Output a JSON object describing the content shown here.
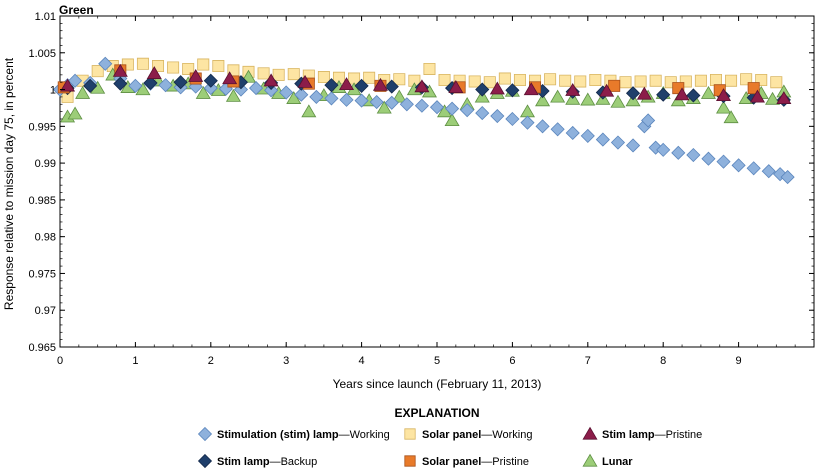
{
  "chart_data": {
    "type": "scatter",
    "title": "Green",
    "xlabel": "Years since launch (February 11, 2013)",
    "ylabel": "Response relative to mission day 75, in percent",
    "xlim": [
      0,
      10
    ],
    "ylim": [
      0.965,
      1.01
    ],
    "xticks": [
      0,
      1,
      2,
      3,
      4,
      5,
      6,
      7,
      8,
      9
    ],
    "yticks": [
      0.965,
      0.97,
      0.975,
      0.98,
      0.985,
      0.99,
      0.995,
      1,
      1.005,
      1.01
    ],
    "ytick_labels": [
      "0.965",
      "0.97",
      "0.975",
      "0.98",
      "0.985",
      "0.99",
      "0.995",
      "1",
      "1.005",
      "1.01"
    ],
    "grid": false,
    "series": [
      {
        "name": "Stimulation (stim) lamp—Working",
        "legend_bold": "Stimulation (stim) lamp",
        "legend_rest": "—Working",
        "marker": "diamond",
        "color": "#8eb1dc",
        "edge": "#5b86bd",
        "points": [
          [
            0.0,
            1.0
          ],
          [
            0.1,
            1.0006
          ],
          [
            0.2,
            1.0012
          ],
          [
            0.4,
            1.0009
          ],
          [
            0.6,
            1.0035
          ],
          [
            0.8,
            1.0015
          ],
          [
            1.0,
            1.0005
          ],
          [
            1.2,
            1.0008
          ],
          [
            1.4,
            1.0006
          ],
          [
            1.6,
            1.0003
          ],
          [
            1.8,
            1.0004
          ],
          [
            2.0,
            1.0002
          ],
          [
            2.2,
            1.0001
          ],
          [
            2.4,
            1.0
          ],
          [
            2.6,
            1.0002
          ],
          [
            2.8,
            0.9999
          ],
          [
            3.0,
            0.9996
          ],
          [
            3.2,
            0.9993
          ],
          [
            3.4,
            0.999
          ],
          [
            3.6,
            0.9988
          ],
          [
            3.8,
            0.9986
          ],
          [
            4.0,
            0.9985
          ],
          [
            4.2,
            0.9983
          ],
          [
            4.4,
            0.9982
          ],
          [
            4.6,
            0.998
          ],
          [
            4.8,
            0.9978
          ],
          [
            5.0,
            0.9976
          ],
          [
            5.2,
            0.9974
          ],
          [
            5.4,
            0.9972
          ],
          [
            5.6,
            0.9968
          ],
          [
            5.8,
            0.9964
          ],
          [
            6.0,
            0.996
          ],
          [
            6.2,
            0.9955
          ],
          [
            6.4,
            0.995
          ],
          [
            6.6,
            0.9946
          ],
          [
            6.8,
            0.9941
          ],
          [
            7.0,
            0.9937
          ],
          [
            7.2,
            0.9932
          ],
          [
            7.4,
            0.9928
          ],
          [
            7.6,
            0.9924
          ],
          [
            7.75,
            0.995
          ],
          [
            7.8,
            0.9958
          ],
          [
            7.9,
            0.9921
          ],
          [
            8.0,
            0.9918
          ],
          [
            8.2,
            0.9914
          ],
          [
            8.4,
            0.9911
          ],
          [
            8.6,
            0.9906
          ],
          [
            8.8,
            0.9902
          ],
          [
            9.0,
            0.9897
          ],
          [
            9.2,
            0.9893
          ],
          [
            9.4,
            0.9889
          ],
          [
            9.55,
            0.9885
          ],
          [
            9.65,
            0.9881
          ]
        ]
      },
      {
        "name": "Stim lamp—Backup",
        "legend_bold": "Stim lamp",
        "legend_rest": "—Backup",
        "marker": "diamond",
        "color": "#1f3f6b",
        "edge": "#14294a",
        "points": [
          [
            0.1,
            1.0002
          ],
          [
            0.4,
            1.0005
          ],
          [
            0.8,
            1.0008
          ],
          [
            1.2,
            1.0009
          ],
          [
            1.6,
            1.001
          ],
          [
            2.0,
            1.0012
          ],
          [
            2.4,
            1.001
          ],
          [
            2.8,
            1.0009
          ],
          [
            3.2,
            1.0008
          ],
          [
            3.6,
            1.0006
          ],
          [
            4.0,
            1.0005
          ],
          [
            4.4,
            1.0004
          ],
          [
            4.8,
            1.0003
          ],
          [
            5.2,
            1.0002
          ],
          [
            5.6,
            1.0
          ],
          [
            6.0,
            0.9999
          ],
          [
            6.4,
            0.9998
          ],
          [
            6.8,
            0.9997
          ],
          [
            7.2,
            0.9996
          ],
          [
            7.6,
            0.9995
          ],
          [
            8.0,
            0.9993
          ],
          [
            8.4,
            0.9992
          ],
          [
            8.8,
            0.9991
          ],
          [
            9.2,
            0.9989
          ],
          [
            9.6,
            0.9986
          ]
        ]
      },
      {
        "name": "Solar panel—Working",
        "legend_bold": "Solar panel",
        "legend_rest": "—Working",
        "marker": "square",
        "color": "#fde5a3",
        "edge": "#d8b562",
        "points": [
          [
            0.1,
            0.999
          ],
          [
            0.3,
            1.0012
          ],
          [
            0.5,
            1.0025
          ],
          [
            0.7,
            1.0032
          ],
          [
            0.9,
            1.0034
          ],
          [
            1.1,
            1.0035
          ],
          [
            1.3,
            1.0032
          ],
          [
            1.5,
            1.003
          ],
          [
            1.7,
            1.0028
          ],
          [
            1.9,
            1.0034
          ],
          [
            2.1,
            1.0032
          ],
          [
            2.3,
            1.0026
          ],
          [
            2.5,
            1.0024
          ],
          [
            2.7,
            1.0022
          ],
          [
            2.9,
            1.002
          ],
          [
            3.1,
            1.0021
          ],
          [
            3.3,
            1.0019
          ],
          [
            3.5,
            1.0017
          ],
          [
            3.7,
            1.0016
          ],
          [
            3.9,
            1.0015
          ],
          [
            4.1,
            1.0016
          ],
          [
            4.3,
            1.0013
          ],
          [
            4.5,
            1.0014
          ],
          [
            4.7,
            1.0012
          ],
          [
            4.9,
            1.0028
          ],
          [
            5.1,
            1.0013
          ],
          [
            5.3,
            1.0012
          ],
          [
            5.5,
            1.0011
          ],
          [
            5.7,
            1.001
          ],
          [
            5.9,
            1.0015
          ],
          [
            6.1,
            1.0013
          ],
          [
            6.3,
            1.0012
          ],
          [
            6.5,
            1.0014
          ],
          [
            6.7,
            1.0012
          ],
          [
            6.9,
            1.0011
          ],
          [
            7.1,
            1.0013
          ],
          [
            7.3,
            1.0012
          ],
          [
            7.5,
            1.001
          ],
          [
            7.7,
            1.0011
          ],
          [
            7.9,
            1.0012
          ],
          [
            8.1,
            1.001
          ],
          [
            8.3,
            1.0011
          ],
          [
            8.5,
            1.0012
          ],
          [
            8.7,
            1.0013
          ],
          [
            8.9,
            1.0012
          ],
          [
            9.1,
            1.0014
          ],
          [
            9.3,
            1.0013
          ],
          [
            9.5,
            1.001
          ]
        ]
      },
      {
        "name": "Solar panel—Pristine",
        "legend_bold": "Solar panel",
        "legend_rest": "—Pristine",
        "marker": "square",
        "color": "#e87a2a",
        "edge": "#a8501a",
        "points": [
          [
            0.05,
            1.0003
          ],
          [
            0.8,
            1.0026
          ],
          [
            1.8,
            1.0015
          ],
          [
            2.3,
            1.0011
          ],
          [
            3.3,
            1.0008
          ],
          [
            4.25,
            1.0005
          ],
          [
            5.3,
            1.0003
          ],
          [
            6.3,
            1.0003
          ],
          [
            7.35,
            1.0005
          ],
          [
            8.2,
            1.0002
          ],
          [
            8.75,
            0.9999
          ],
          [
            9.2,
            1.0002
          ]
        ]
      },
      {
        "name": "Stim lamp—Pristine",
        "legend_bold": "Stim lamp",
        "legend_rest": "—Pristine",
        "marker": "triangle",
        "color": "#8c1d4a",
        "edge": "#5a1030",
        "points": [
          [
            0.1,
            1.0005
          ],
          [
            0.8,
            1.0025
          ],
          [
            1.25,
            1.0022
          ],
          [
            1.8,
            1.0018
          ],
          [
            2.25,
            1.0015
          ],
          [
            2.8,
            1.0012
          ],
          [
            3.25,
            1.001
          ],
          [
            3.8,
            1.0007
          ],
          [
            4.25,
            1.0006
          ],
          [
            4.8,
            1.0004
          ],
          [
            5.25,
            1.0003
          ],
          [
            5.8,
            1.0001
          ],
          [
            6.25,
            1.0
          ],
          [
            6.8,
            0.9999
          ],
          [
            7.25,
            0.9998
          ],
          [
            7.75,
            0.9994
          ],
          [
            8.25,
            0.9993
          ],
          [
            8.8,
            0.9992
          ],
          [
            9.25,
            0.999
          ],
          [
            9.6,
            0.9988
          ]
        ]
      },
      {
        "name": "Lunar",
        "legend_bold": "Lunar",
        "legend_rest": "",
        "marker": "triangle",
        "color": "#9ccd78",
        "edge": "#5e8f43",
        "points": [
          [
            0.1,
            0.9963
          ],
          [
            0.2,
            0.9967
          ],
          [
            0.3,
            0.9995
          ],
          [
            0.5,
            1.0002
          ],
          [
            0.7,
            1.002
          ],
          [
            0.9,
            1.0003
          ],
          [
            1.1,
            1.0
          ],
          [
            1.3,
            1.0012
          ],
          [
            1.5,
            1.0005
          ],
          [
            1.7,
            1.0008
          ],
          [
            1.9,
            0.9995
          ],
          [
            2.1,
            0.9999
          ],
          [
            2.3,
            0.9991
          ],
          [
            2.5,
            1.0017
          ],
          [
            2.7,
            1.0001
          ],
          [
            2.9,
            0.9995
          ],
          [
            3.1,
            0.9988
          ],
          [
            3.3,
            0.997
          ],
          [
            3.5,
            0.9992
          ],
          [
            3.7,
            1.0003
          ],
          [
            3.9,
            1.0
          ],
          [
            4.1,
            0.9985
          ],
          [
            4.3,
            0.9975
          ],
          [
            4.5,
            0.999
          ],
          [
            4.7,
            1.0
          ],
          [
            4.9,
            0.9997
          ],
          [
            5.1,
            0.997
          ],
          [
            5.2,
            0.9958
          ],
          [
            5.4,
            0.998
          ],
          [
            5.6,
            0.999
          ],
          [
            5.8,
            0.9995
          ],
          [
            6.0,
            0.9998
          ],
          [
            6.2,
            0.997
          ],
          [
            6.4,
            0.9985
          ],
          [
            6.6,
            0.999
          ],
          [
            6.8,
            0.9987
          ],
          [
            7.0,
            0.9986
          ],
          [
            7.2,
            0.9987
          ],
          [
            7.4,
            0.9983
          ],
          [
            7.6,
            0.9985
          ],
          [
            7.8,
            0.999
          ],
          [
            8.0,
            0.9995
          ],
          [
            8.2,
            0.9985
          ],
          [
            8.4,
            0.9988
          ],
          [
            8.6,
            0.9995
          ],
          [
            8.8,
            0.9975
          ],
          [
            8.9,
            0.9962
          ],
          [
            9.1,
            0.9988
          ],
          [
            9.3,
            0.9995
          ],
          [
            9.45,
            0.9987
          ],
          [
            9.6,
            0.9997
          ]
        ]
      }
    ],
    "legend": {
      "heading": "EXPLANATION",
      "placement": "bottom-center",
      "order": [
        0,
        2,
        4,
        1,
        3,
        5
      ]
    }
  }
}
